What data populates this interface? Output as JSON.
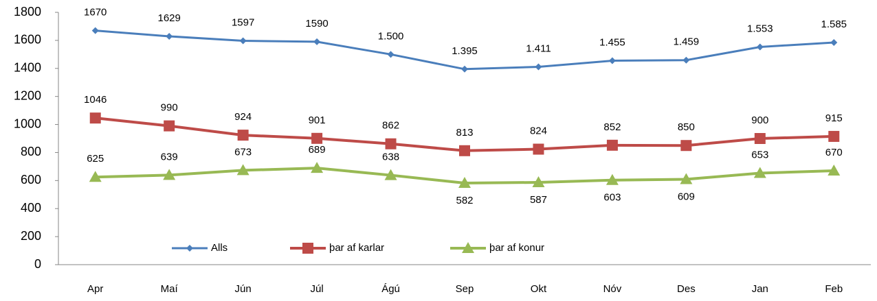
{
  "chart_data": {
    "type": "line",
    "categories": [
      "Apr",
      "Maí",
      "Jún",
      "Júl",
      "Ágú",
      "Sep",
      "Okt",
      "Nóv",
      "Des",
      "Jan",
      "Feb"
    ],
    "series": [
      {
        "name": "Alls",
        "color": "#4a7ebb",
        "marker": "diamond",
        "values": [
          1670,
          1629,
          1597,
          1590,
          1500,
          1395,
          1411,
          1455,
          1459,
          1553,
          1585
        ],
        "value_labels": [
          "1670",
          "1629",
          "1597",
          "1590",
          "1.500",
          "1.395",
          "1.411",
          "1.455",
          "1.459",
          "1.553",
          "1.585"
        ]
      },
      {
        "name": "þar af karlar",
        "color": "#be4b48",
        "marker": "square",
        "values": [
          1046,
          990,
          924,
          901,
          862,
          813,
          824,
          852,
          850,
          900,
          915
        ]
      },
      {
        "name": "þar af konur",
        "color": "#98b954",
        "marker": "triangle",
        "values": [
          625,
          639,
          673,
          689,
          638,
          582,
          587,
          603,
          609,
          653,
          670
        ]
      }
    ],
    "ylim": [
      0,
      1800
    ],
    "yticks": [
      0,
      200,
      400,
      600,
      800,
      1000,
      1200,
      1400,
      1600,
      1800
    ],
    "grid": false,
    "legend": "bottom"
  }
}
